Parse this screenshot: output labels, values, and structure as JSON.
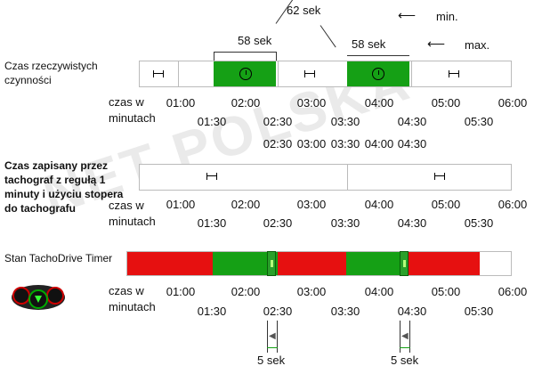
{
  "labels": {
    "real": "Czas rzeczywistych czynności",
    "recorded": "Czas zapisany przez tachograf z regułą 1 minuty i użyciu stopera do tachografu",
    "state": "Stan TachoDrive Timer",
    "czas": "czas w minutach"
  },
  "ticks_top": [
    "01:00",
    "02:00",
    "03:00",
    "04:00",
    "05:00",
    "06:00"
  ],
  "ticks_bottom": [
    "01:30",
    "02:30",
    "03:30",
    "04:30",
    "05:30"
  ],
  "annotations": {
    "a58a": "58 sek",
    "a62": "62 sek",
    "a58b": "58 sek",
    "min": "min.",
    "max": "max.",
    "s5a": "5 sek",
    "s5b": "5 sek"
  },
  "watermark": "NET POLSKA",
  "colors": {
    "green": "#15a015",
    "red": "#e61010",
    "grid": "#bbb"
  }
}
